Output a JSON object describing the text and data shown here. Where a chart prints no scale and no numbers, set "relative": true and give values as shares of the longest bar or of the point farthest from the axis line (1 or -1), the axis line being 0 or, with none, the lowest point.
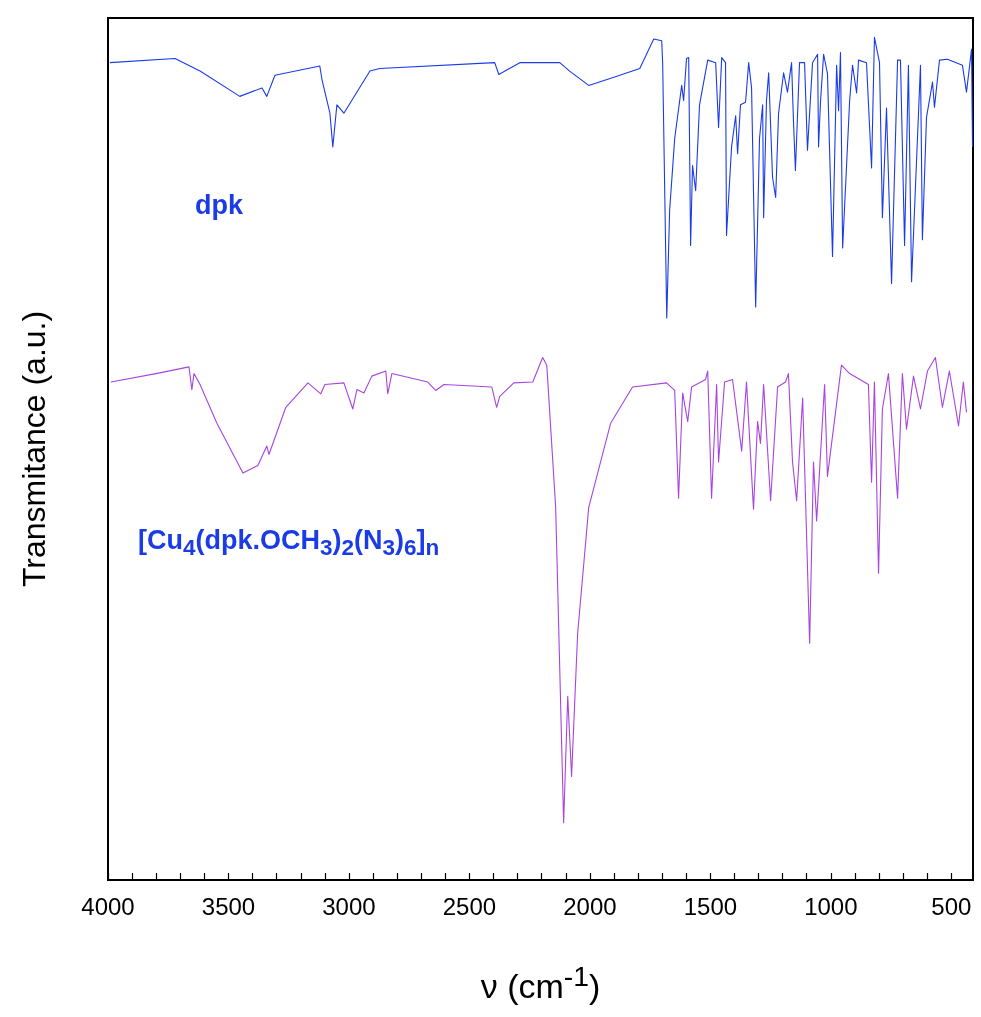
{
  "chart_data": {
    "type": "line",
    "relative": true,
    "xlabel": "ν (cm$^{-1}$)",
    "ylabel": "Transmitance (a.u.)",
    "xlim": [
      4000,
      410
    ],
    "xticks": [
      4000,
      {
        "value": 3900,
        "label": null
      },
      {
        "value": 3800,
        "label": null
      },
      {
        "value": 3700,
        "label": null
      },
      {
        "value": 3600,
        "label": null
      },
      3500,
      {
        "value": 3400,
        "label": null
      },
      {
        "value": 3300,
        "label": null
      },
      {
        "value": 3200,
        "label": null
      },
      {
        "value": 3100,
        "label": null
      },
      3000,
      {
        "value": 2900,
        "label": null
      },
      {
        "value": 2800,
        "label": null
      },
      {
        "value": 2700,
        "label": null
      },
      {
        "value": 2600,
        "label": null
      },
      2500,
      {
        "value": 2400,
        "label": null
      },
      {
        "value": 2300,
        "label": null
      },
      {
        "value": 2200,
        "label": null
      },
      {
        "value": 2100,
        "label": null
      },
      2000,
      {
        "value": 1900,
        "label": null
      },
      {
        "value": 1800,
        "label": null
      },
      {
        "value": 1700,
        "label": null
      },
      {
        "value": 1600,
        "label": null
      },
      1500,
      {
        "value": 1400,
        "label": null
      },
      {
        "value": 1300,
        "label": null
      },
      {
        "value": 1200,
        "label": null
      },
      {
        "value": 1100,
        "label": null
      },
      1000,
      {
        "value": 900,
        "label": null
      },
      {
        "value": 800,
        "label": null
      },
      {
        "value": 700,
        "label": null
      },
      {
        "value": 600,
        "label": null
      },
      500
    ],
    "grid": false,
    "marker": "none",
    "line_style": "solid",
    "tick_labels": "x",
    "series": [
      {
        "name": "dpk",
        "color": "#1a3be6",
        "x": [
          3992,
          3722,
          3618,
          3453,
          3361,
          3341,
          3307,
          3121,
          3112,
          3079,
          3067,
          3050,
          3021,
          2913,
          2872,
          2395,
          2378,
          2291,
          2125,
          2084,
          2005,
          1897,
          1793,
          1735,
          1702,
          1698,
          1681,
          1669,
          1648,
          1619,
          1611,
          1599,
          1590,
          1582,
          1574,
          1561,
          1545,
          1511,
          1478,
          1466,
          1453,
          1437,
          1433,
          1412,
          1395,
          1387,
          1375,
          1354,
          1341,
          1329,
          1312,
          1296,
          1283,
          1279,
          1267,
          1258,
          1242,
          1229,
          1217,
          1196,
          1180,
          1163,
          1155,
          1147,
          1130,
          1109,
          1097,
          1076,
          1055,
          1051,
          1043,
          1030,
          1014,
          993,
          976,
          968,
          960,
          951,
          922,
          910,
          893,
          885,
          852,
          831,
          819,
          798,
          786,
          769,
          748,
          723,
          711,
          694,
          678,
          665,
          628,
          620,
          603,
          578,
          570,
          549,
          516,
          454,
          437,
          416,
          412
        ],
        "values": [
          0.97,
          0.975,
          0.96,
          0.93,
          0.94,
          0.93,
          0.955,
          0.966,
          0.95,
          0.91,
          0.87,
          0.92,
          0.91,
          0.96,
          0.963,
          0.97,
          0.956,
          0.97,
          0.97,
          0.96,
          0.943,
          0.953,
          0.963,
          0.998,
          0.996,
          0.97,
          0.667,
          0.795,
          0.88,
          0.943,
          0.925,
          0.975,
          0.976,
          0.753,
          0.848,
          0.818,
          0.92,
          0.973,
          0.97,
          0.893,
          0.976,
          0.97,
          0.765,
          0.87,
          0.907,
          0.862,
          0.92,
          0.923,
          0.97,
          0.94,
          0.68,
          0.88,
          0.92,
          0.786,
          0.925,
          0.958,
          0.834,
          0.81,
          0.91,
          0.958,
          0.935,
          0.97,
          0.9,
          0.842,
          0.97,
          0.97,
          0.866,
          0.97,
          0.98,
          0.87,
          0.923,
          0.98,
          0.957,
          0.74,
          0.967,
          0.913,
          0.982,
          0.75,
          0.925,
          0.967,
          0.934,
          0.973,
          0.97,
          0.845,
          1,
          0.97,
          0.786,
          0.916,
          0.708,
          0.973,
          0.973,
          0.753,
          0.967,
          0.71,
          0.967,
          0.76,
          0.905,
          0.947,
          0.917,
          0.973,
          0.974,
          0.967,
          0.935,
          0.986,
          0.87
        ]
      },
      {
        "name": "[Cu$_{4}$(dpk.OCH$_{3}$)$_{2}$(N$_{3}$)$_{6}$]$_{n}$",
        "color": "#a845e0",
        "x": [
          3988,
          3801,
          3664,
          3652,
          3643,
          3618,
          3548,
          3440,
          3378,
          3341,
          3332,
          3262,
          3170,
          3117,
          3100,
          3021,
          2984,
          2967,
          2938,
          2905,
          2847,
          2839,
          2822,
          2673,
          2640,
          2606,
          2407,
          2387,
          2374,
          2316,
          2237,
          2196,
          2179,
          2142,
          2109,
          2092,
          2076,
          2051,
          2005,
          1914,
          1823,
          1682,
          1648,
          1632,
          1615,
          1594,
          1578,
          1520,
          1511,
          1495,
          1474,
          1466,
          1441,
          1408,
          1370,
          1350,
          1321,
          1304,
          1292,
          1279,
          1250,
          1221,
          1188,
          1176,
          1159,
          1142,
          1117,
          1088,
          1072,
          1059,
          1026,
          1014,
          956,
          922,
          844,
          831,
          819,
          802,
          786,
          761,
          723,
          703,
          686,
          657,
          628,
          599,
          566,
          537,
          508,
          470,
          450,
          437
        ],
        "values": [
          0.591,
          0.601,
          0.609,
          0.582,
          0.601,
          0.588,
          0.542,
          0.483,
          0.492,
          0.515,
          0.505,
          0.561,
          0.59,
          0.577,
          0.588,
          0.59,
          0.559,
          0.582,
          0.578,
          0.598,
          0.604,
          0.577,
          0.601,
          0.591,
          0.581,
          0.588,
          0.585,
          0.561,
          0.574,
          0.59,
          0.591,
          0.62,
          0.611,
          0.442,
          0.068,
          0.218,
          0.123,
          0.292,
          0.442,
          0.542,
          0.585,
          0.59,
          0.581,
          0.453,
          0.578,
          0.544,
          0.585,
          0.594,
          0.604,
          0.453,
          0.588,
          0.496,
          0.591,
          0.594,
          0.509,
          0.591,
          0.44,
          0.544,
          0.518,
          0.588,
          0.45,
          0.585,
          0.591,
          0.601,
          0.496,
          0.45,
          0.572,
          0.281,
          0.496,
          0.426,
          0.588,
          0.479,
          0.611,
          0.601,
          0.588,
          0.472,
          0.591,
          0.364,
          0.559,
          0.601,
          0.453,
          0.601,
          0.535,
          0.598,
          0.559,
          0.604,
          0.62,
          0.561,
          0.604,
          0.539,
          0.591,
          0.555
        ]
      }
    ]
  }
}
